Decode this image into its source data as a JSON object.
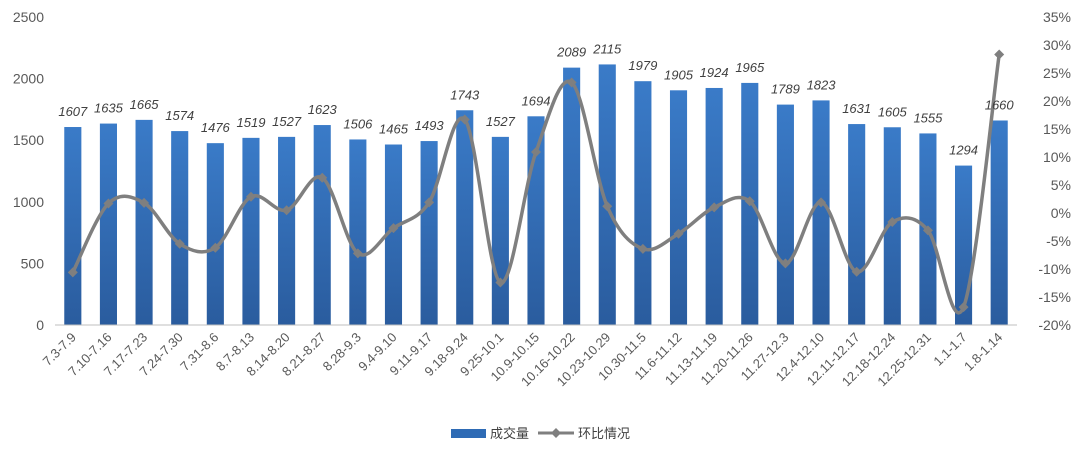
{
  "chart_data": {
    "type": "bar",
    "categories": [
      "7.3-7.9",
      "7.10-7.16",
      "7.17-7.23",
      "7.24-7.30",
      "7.31-8.6",
      "8.7-8.13",
      "8.14-8.20",
      "8.21-8.27",
      "8.28-9.3",
      "9.4-9.10",
      "9.11-9.17",
      "9.18-9.24",
      "9.25-10.1",
      "10.9-10.15",
      "10.16-10.22",
      "10.23-10.29",
      "10.30-11.5",
      "11.6-11.12",
      "11.13-11.19",
      "11.20-11.26",
      "11.27-12.3",
      "12.4-12.10",
      "12.11-12.17",
      "12.18-12.24",
      "12.25-12.31",
      "1.1-1.7",
      "1.8-1.14"
    ],
    "series": [
      {
        "name": "成交量",
        "type": "bar",
        "axis": "left",
        "color": "#2E6BB5",
        "values": [
          1607,
          1635,
          1665,
          1574,
          1476,
          1519,
          1527,
          1623,
          1506,
          1465,
          1493,
          1743,
          1527,
          1694,
          2089,
          2115,
          1979,
          1905,
          1924,
          1965,
          1789,
          1823,
          1631,
          1605,
          1555,
          1294,
          1660
        ]
      },
      {
        "name": "环比情况",
        "type": "line",
        "axis": "right",
        "color": "#7F7F7F",
        "values": [
          -10.6,
          1.7,
          1.8,
          -5.5,
          -6.2,
          2.9,
          0.5,
          6.3,
          -7.2,
          -2.7,
          1.9,
          16.7,
          -12.4,
          10.9,
          23.3,
          1.2,
          -6.4,
          -3.7,
          1.0,
          2.1,
          -9.0,
          1.9,
          -10.5,
          -1.6,
          -3.1,
          -16.8,
          28.3
        ]
      }
    ],
    "ylim_left": [
      0,
      2500
    ],
    "yticks_left": [
      "0",
      "500",
      "1000",
      "1500",
      "2000",
      "2500"
    ],
    "ylim_right": [
      -20,
      35
    ],
    "yticks_right": [
      "-20%",
      "-15%",
      "-10%",
      "-5%",
      "0%",
      "5%",
      "10%",
      "15%",
      "20%",
      "25%",
      "30%",
      "35%"
    ],
    "legend_position": "bottom",
    "grid": false,
    "title": "",
    "xlabel": "",
    "ylabel": ""
  }
}
